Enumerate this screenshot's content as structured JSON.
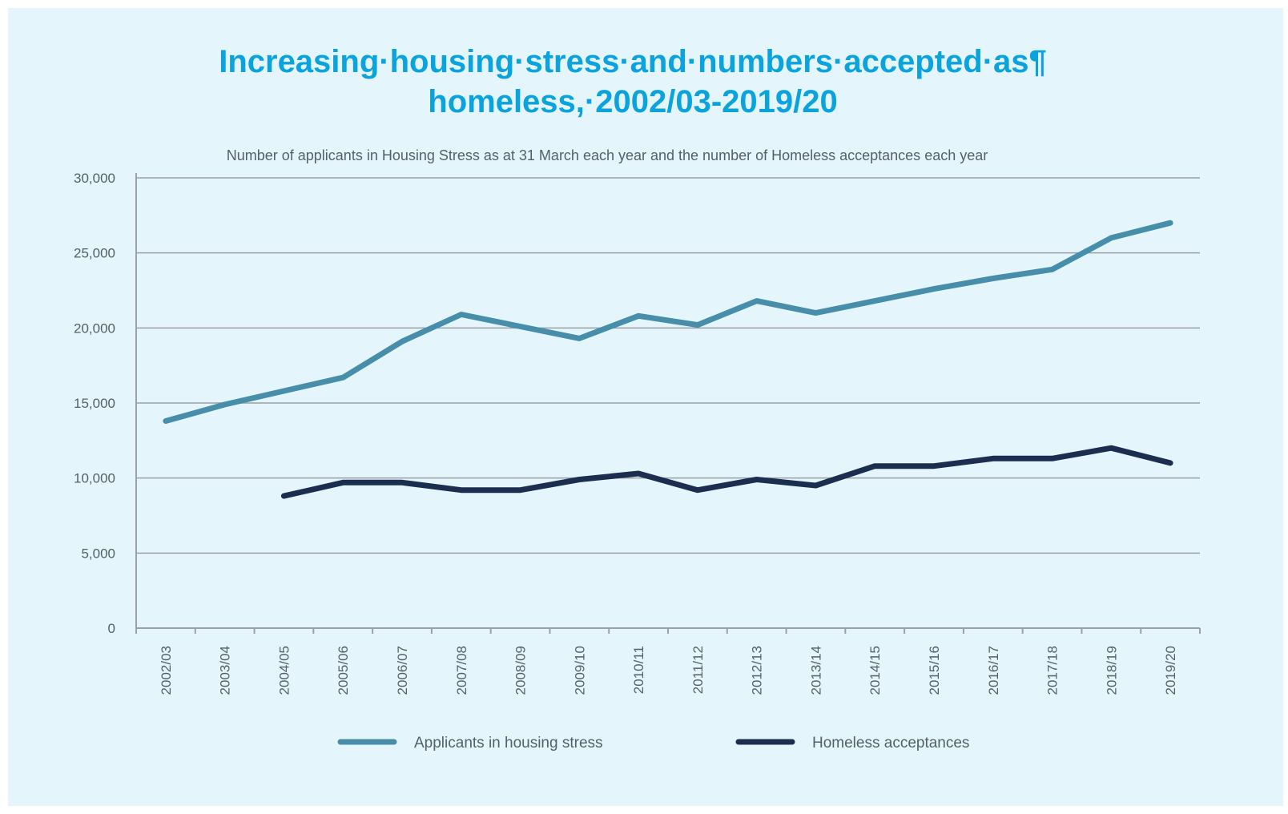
{
  "chart_data": {
    "type": "line",
    "title_lines": [
      "Increasing·housing·stress·and·numbers·accepted·as¶",
      "homeless,·2002/03-2019/20"
    ],
    "subtitle": "Number of applicants in Housing Stress as at 31 March each year and the number of Homeless acceptances each year",
    "categories": [
      "2002/03",
      "2003/04",
      "2004/05",
      "2005/06",
      "2006/07",
      "2007/08",
      "2008/09",
      "2009/10",
      "2010/11",
      "2011/12",
      "2012/13",
      "2013/14",
      "2014/15",
      "2015/16",
      "2016/17",
      "2017/18",
      "2018/19",
      "2019/20"
    ],
    "y_ticks": [
      "0",
      "5,000",
      "10,000",
      "15,000",
      "20,000",
      "25,000",
      "30,000"
    ],
    "ylim": [
      0,
      30000
    ],
    "grid": true,
    "legend_position": "bottom",
    "series": [
      {
        "name": "Applicants in housing stress",
        "color": "#468ea9",
        "values": [
          13800,
          14900,
          15800,
          16700,
          19100,
          20900,
          20100,
          19300,
          20800,
          20200,
          21800,
          21000,
          21800,
          22600,
          23300,
          23900,
          26000,
          27000
        ]
      },
      {
        "name": "Homeless acceptances",
        "color": "#1b2e50",
        "values": [
          null,
          null,
          8800,
          9700,
          9700,
          9200,
          9200,
          9900,
          10300,
          9200,
          9900,
          9500,
          10800,
          10800,
          11300,
          11300,
          12000,
          11000
        ]
      }
    ]
  }
}
